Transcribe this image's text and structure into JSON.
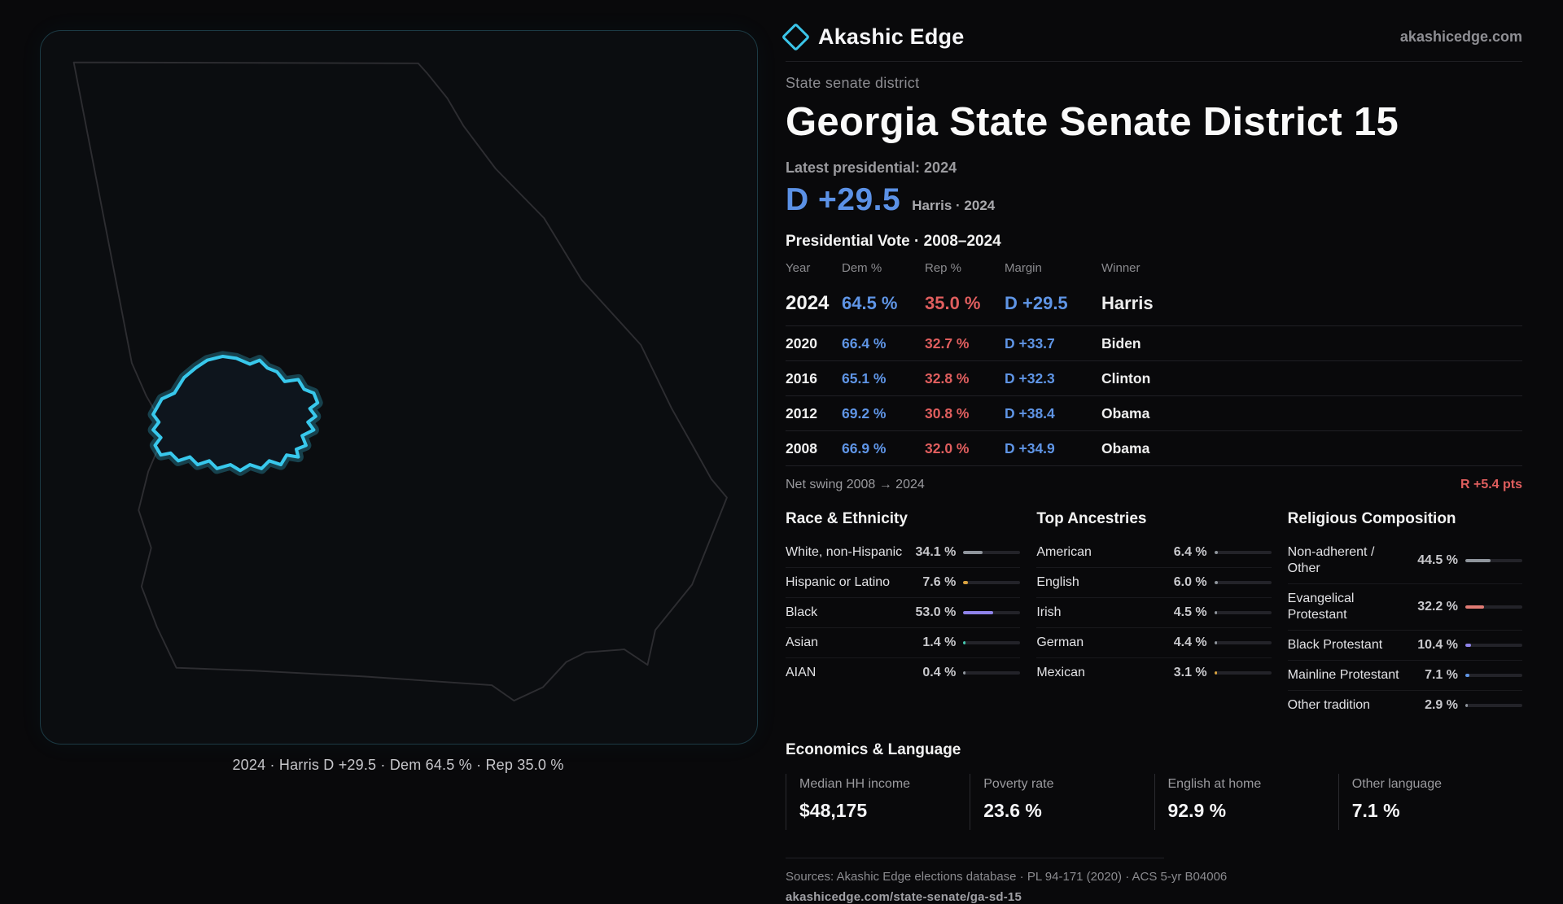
{
  "brand": {
    "name": "Akashic Edge",
    "domain": "akashicedge.com"
  },
  "map": {
    "caption": "2024 · Harris D +29.5 · Dem 64.5 % · Rep 35.0 %"
  },
  "header": {
    "kicker": "State senate district",
    "title": "Georgia State Senate District 15",
    "latest_label": "Latest presidential: 2024",
    "margin_big": "D +29.5",
    "margin_note": "Harris · 2024"
  },
  "vote_table": {
    "title": "Presidential Vote · 2008–2024",
    "columns": [
      "Year",
      "Dem %",
      "Rep %",
      "Margin",
      "Winner"
    ],
    "rows": [
      {
        "year": "2024",
        "dem": "64.5 %",
        "rep": "35.0 %",
        "margin": "D +29.5",
        "winner": "Harris",
        "emphasis": true
      },
      {
        "year": "2020",
        "dem": "66.4 %",
        "rep": "32.7 %",
        "margin": "D +33.7",
        "winner": "Biden",
        "emphasis": false
      },
      {
        "year": "2016",
        "dem": "65.1 %",
        "rep": "32.8 %",
        "margin": "D +32.3",
        "winner": "Clinton",
        "emphasis": false
      },
      {
        "year": "2012",
        "dem": "69.2 %",
        "rep": "30.8 %",
        "margin": "D +38.4",
        "winner": "Obama",
        "emphasis": false
      },
      {
        "year": "2008",
        "dem": "66.9 %",
        "rep": "32.0 %",
        "margin": "D +34.9",
        "winner": "Obama",
        "emphasis": false
      }
    ],
    "net_swing_label": "Net swing 2008 → 2024",
    "net_swing_value": "R +5.4 pts"
  },
  "demographics": {
    "race": {
      "title": "Race & Ethnicity",
      "items": [
        {
          "label": "White, non-Hispanic",
          "value": "34.1 %",
          "pct": 34.1,
          "color": "#8f959c"
        },
        {
          "label": "Hispanic or Latino",
          "value": "7.6 %",
          "pct": 7.6,
          "color": "#d9a23f"
        },
        {
          "label": "Black",
          "value": "53.0 %",
          "pct": 53.0,
          "color": "#8f83ea"
        },
        {
          "label": "Asian",
          "value": "1.4 %",
          "pct": 1.4,
          "color": "#45c8b0"
        },
        {
          "label": "AIAN",
          "value": "0.4 %",
          "pct": 0.4,
          "color": "#8f959c"
        }
      ]
    },
    "ancestries": {
      "title": "Top Ancestries",
      "items": [
        {
          "label": "American",
          "value": "6.4 %",
          "pct": 6.4,
          "color": "#8f959c"
        },
        {
          "label": "English",
          "value": "6.0 %",
          "pct": 6.0,
          "color": "#8f959c"
        },
        {
          "label": "Irish",
          "value": "4.5 %",
          "pct": 4.5,
          "color": "#8f959c"
        },
        {
          "label": "German",
          "value": "4.4 %",
          "pct": 4.4,
          "color": "#8f959c"
        },
        {
          "label": "Mexican",
          "value": "3.1 %",
          "pct": 3.1,
          "color": "#d9a23f"
        }
      ]
    },
    "religion": {
      "title": "Religious Composition",
      "items": [
        {
          "label": "Non-adherent / Other",
          "value": "44.5 %",
          "pct": 44.5,
          "color": "#8f959c"
        },
        {
          "label": "Evangelical Protestant",
          "value": "32.2 %",
          "pct": 32.2,
          "color": "#e27b74"
        },
        {
          "label": "Black Protestant",
          "value": "10.4 %",
          "pct": 10.4,
          "color": "#8f83ea"
        },
        {
          "label": "Mainline Protestant",
          "value": "7.1 %",
          "pct": 7.1,
          "color": "#5f95e6"
        },
        {
          "label": "Other tradition",
          "value": "2.9 %",
          "pct": 2.9,
          "color": "#8f959c"
        }
      ]
    }
  },
  "economics": {
    "title": "Economics & Language",
    "stats": [
      {
        "label": "Median HH income",
        "value": "$48,175"
      },
      {
        "label": "Poverty rate",
        "value": "23.6 %"
      },
      {
        "label": "English at home",
        "value": "92.9 %"
      },
      {
        "label": "Other language",
        "value": "7.1 %"
      }
    ]
  },
  "footer": {
    "sources": "Sources: Akashic Edge elections database · PL 94-171 (2020) · ACS 5-yr B04006",
    "permalink": "akashicedge.com/state-senate/ga-sd-15"
  }
}
